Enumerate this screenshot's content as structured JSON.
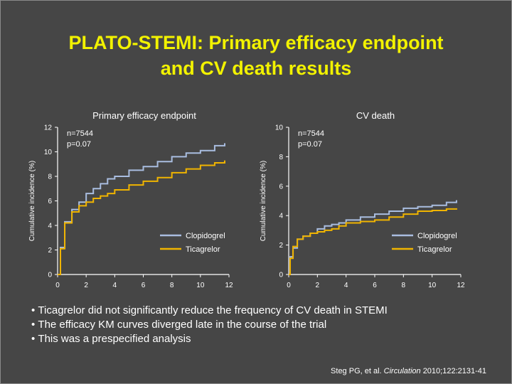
{
  "title_line1": "PLATO-STEMI: Primary efficacy endpoint",
  "title_line2": "and CV death results",
  "colors": {
    "background": "#464646",
    "title": "#f2f200",
    "clopidogrel": "#a9bde0",
    "ticagrelor": "#f0b400"
  },
  "chart_data": [
    {
      "type": "line",
      "title": "Primary efficacy endpoint",
      "ylabel": "Cumulative incidence (%)",
      "xlabel": "",
      "xlim": [
        0,
        12
      ],
      "ylim": [
        0,
        12
      ],
      "xticks": [
        0,
        2,
        4,
        6,
        8,
        10,
        12
      ],
      "yticks": [
        0,
        2,
        4,
        6,
        8,
        10,
        12
      ],
      "annotations": [
        "n=7544",
        "p=0.07"
      ],
      "legend": "bottom-right",
      "series": [
        {
          "name": "Clopidogrel",
          "color": "#a9bde0",
          "points": [
            [
              0,
              0
            ],
            [
              0.2,
              2.2
            ],
            [
              0.5,
              4.3
            ],
            [
              1,
              5.3
            ],
            [
              1.5,
              5.9
            ],
            [
              2,
              6.6
            ],
            [
              2.5,
              7.0
            ],
            [
              3,
              7.4
            ],
            [
              3.5,
              7.8
            ],
            [
              4,
              8.0
            ],
            [
              5,
              8.5
            ],
            [
              6,
              8.8
            ],
            [
              7,
              9.2
            ],
            [
              8,
              9.6
            ],
            [
              9,
              9.9
            ],
            [
              10,
              10.1
            ],
            [
              11,
              10.5
            ],
            [
              11.7,
              10.7
            ]
          ]
        },
        {
          "name": "Ticagrelor",
          "color": "#f0b400",
          "points": [
            [
              0,
              0
            ],
            [
              0.2,
              2.1
            ],
            [
              0.5,
              4.2
            ],
            [
              1,
              5.1
            ],
            [
              1.5,
              5.6
            ],
            [
              2,
              5.9
            ],
            [
              2.5,
              6.2
            ],
            [
              3,
              6.4
            ],
            [
              3.5,
              6.6
            ],
            [
              4,
              6.9
            ],
            [
              5,
              7.3
            ],
            [
              6,
              7.6
            ],
            [
              7,
              7.9
            ],
            [
              8,
              8.3
            ],
            [
              9,
              8.6
            ],
            [
              10,
              8.9
            ],
            [
              11,
              9.1
            ],
            [
              11.7,
              9.3
            ]
          ]
        }
      ]
    },
    {
      "type": "line",
      "title": "CV death",
      "ylabel": "Cumulative incidence (%)",
      "xlabel": "",
      "xlim": [
        0,
        12
      ],
      "ylim": [
        0,
        10
      ],
      "xticks": [
        0,
        2,
        4,
        6,
        8,
        10,
        12
      ],
      "yticks": [
        0,
        2,
        4,
        6,
        8,
        10
      ],
      "annotations": [
        "n=7544",
        "p=0.07"
      ],
      "legend": "bottom-right",
      "series": [
        {
          "name": "Clopidogrel",
          "color": "#a9bde0",
          "points": [
            [
              0,
              0
            ],
            [
              0.1,
              1.2
            ],
            [
              0.3,
              1.8
            ],
            [
              0.6,
              2.4
            ],
            [
              1,
              2.6
            ],
            [
              1.5,
              2.8
            ],
            [
              2,
              3.1
            ],
            [
              2.5,
              3.3
            ],
            [
              3,
              3.4
            ],
            [
              3.5,
              3.5
            ],
            [
              4,
              3.7
            ],
            [
              5,
              3.9
            ],
            [
              6,
              4.1
            ],
            [
              7,
              4.3
            ],
            [
              8,
              4.5
            ],
            [
              9,
              4.6
            ],
            [
              10,
              4.7
            ],
            [
              11,
              4.9
            ],
            [
              11.7,
              5.05
            ]
          ]
        },
        {
          "name": "Ticagrelor",
          "color": "#f0b400",
          "points": [
            [
              0,
              0
            ],
            [
              0.1,
              1.1
            ],
            [
              0.3,
              1.9
            ],
            [
              0.6,
              2.4
            ],
            [
              1,
              2.6
            ],
            [
              1.5,
              2.8
            ],
            [
              2,
              2.9
            ],
            [
              2.5,
              3.0
            ],
            [
              3,
              3.1
            ],
            [
              3.5,
              3.3
            ],
            [
              4,
              3.5
            ],
            [
              5,
              3.6
            ],
            [
              6,
              3.7
            ],
            [
              7,
              3.9
            ],
            [
              8,
              4.1
            ],
            [
              9,
              4.3
            ],
            [
              10,
              4.35
            ],
            [
              11,
              4.45
            ],
            [
              11.7,
              4.5
            ]
          ]
        }
      ]
    }
  ],
  "bullets": [
    "Ticagrelor did not significantly reduce the frequency of CV death in STEMI",
    "The efficacy KM curves diverged late in the course of the trial",
    "This was a prespecified analysis"
  ],
  "citation": {
    "prefix": "Steg PG, et al.",
    "journal": "Circulation",
    "suffix": "2010;122:2131-41"
  }
}
